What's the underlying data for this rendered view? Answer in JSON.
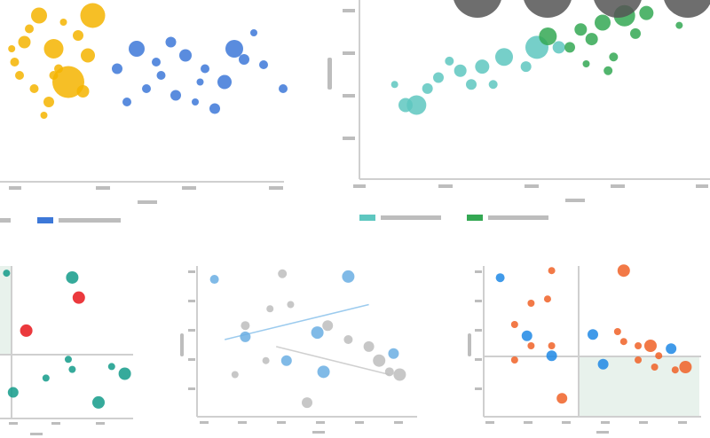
{
  "chart_data": [
    {
      "type": "scatter",
      "series": [
        {
          "name": "",
          "color": "#f4b400",
          "points": [
            [
              0.4,
              0.95
            ],
            [
              0.8,
              0.8
            ],
            [
              0.25,
              0.75
            ],
            [
              0.55,
              0.7
            ],
            [
              0.6,
              0.55
            ],
            [
              0.95,
              0.95
            ],
            [
              0.15,
              0.6
            ],
            [
              0.7,
              0.45
            ],
            [
              0.35,
              0.4
            ],
            [
              0.5,
              0.3
            ],
            [
              0.45,
              0.2
            ],
            [
              0.9,
              0.65
            ],
            [
              0.3,
              0.85
            ],
            [
              0.65,
              0.9
            ],
            [
              0.85,
              0.38
            ],
            [
              0.2,
              0.5
            ],
            [
              0.12,
              0.7
            ],
            [
              0.55,
              0.5
            ]
          ],
          "sizes": [
            9,
            6,
            7,
            11,
            5,
            14,
            5,
            18,
            5,
            6,
            4,
            8,
            5,
            4,
            7,
            5,
            4,
            5
          ]
        },
        {
          "name": "",
          "color": "#3d78d8",
          "points": [
            [
              1.2,
              0.55
            ],
            [
              1.4,
              0.7
            ],
            [
              1.6,
              0.6
            ],
            [
              1.75,
              0.75
            ],
            [
              1.9,
              0.65
            ],
            [
              2.1,
              0.55
            ],
            [
              2.3,
              0.45
            ],
            [
              2.5,
              0.62
            ],
            [
              2.7,
              0.58
            ],
            [
              2.9,
              0.4
            ],
            [
              1.5,
              0.4
            ],
            [
              1.8,
              0.35
            ],
            [
              2.0,
              0.3
            ],
            [
              2.2,
              0.25
            ],
            [
              2.6,
              0.82
            ],
            [
              1.3,
              0.3
            ],
            [
              2.4,
              0.7
            ],
            [
              1.65,
              0.5
            ],
            [
              2.05,
              0.45
            ]
          ],
          "sizes": [
            6,
            9,
            5,
            6,
            7,
            5,
            8,
            6,
            5,
            5,
            5,
            6,
            4,
            6,
            4,
            5,
            10,
            5,
            4
          ]
        }
      ],
      "xlim": [
        0,
        3
      ],
      "ylim": [
        0,
        1
      ]
    },
    {
      "type": "scatter",
      "series": [
        {
          "name": "",
          "color": "#5ec7c0",
          "points": [
            [
              0.3,
              0.3
            ],
            [
              0.4,
              0.3
            ],
            [
              0.5,
              0.42
            ],
            [
              0.8,
              0.55
            ],
            [
              1.0,
              0.58
            ],
            [
              1.2,
              0.65
            ],
            [
              1.5,
              0.72
            ],
            [
              1.7,
              0.72
            ],
            [
              0.6,
              0.5
            ],
            [
              0.9,
              0.45
            ],
            [
              1.1,
              0.45
            ],
            [
              1.4,
              0.58
            ],
            [
              0.2,
              0.45
            ],
            [
              0.7,
              0.62
            ]
          ],
          "sizes": [
            8,
            11,
            6,
            7,
            8,
            10,
            13,
            7,
            6,
            6,
            5,
            6,
            4,
            5
          ]
        },
        {
          "name": "",
          "color": "#34a853",
          "points": [
            [
              1.6,
              0.8
            ],
            [
              1.9,
              0.85
            ],
            [
              2.1,
              0.9
            ],
            [
              2.3,
              0.95
            ],
            [
              2.5,
              0.97
            ],
            [
              1.8,
              0.72
            ],
            [
              2.0,
              0.78
            ],
            [
              2.2,
              0.65
            ],
            [
              2.4,
              0.82
            ],
            [
              2.8,
              0.88
            ],
            [
              1.95,
              0.6
            ],
            [
              2.15,
              0.55
            ]
          ],
          "sizes": [
            10,
            7,
            9,
            12,
            8,
            6,
            7,
            5,
            6,
            4,
            4,
            5
          ]
        }
      ],
      "xlim": [
        0,
        3
      ],
      "ylim": [
        0,
        1
      ]
    },
    {
      "type": "scatter",
      "series": [
        {
          "name": "",
          "color": "#9ad0b8",
          "region": true
        },
        {
          "name": "",
          "color": "#139b8a",
          "points": [
            [
              0.55,
              0.92
            ],
            [
              0.1,
              0.12
            ],
            [
              0.35,
              0.22
            ],
            [
              0.55,
              0.28
            ],
            [
              0.52,
              0.35
            ],
            [
              0.85,
              0.3
            ],
            [
              0.75,
              0.05
            ],
            [
              0.95,
              0.25
            ],
            [
              0.05,
              0.95
            ]
          ],
          "sizes": [
            7,
            6,
            4,
            4,
            4,
            4,
            7,
            7,
            4
          ]
        },
        {
          "name": "",
          "color": "#e8161b",
          "points": [
            [
              0.6,
              0.78
            ],
            [
              0.2,
              0.55
            ]
          ],
          "sizes": [
            7,
            7
          ]
        }
      ],
      "xlim": [
        0,
        1
      ],
      "ylim": [
        0,
        1
      ]
    },
    {
      "type": "scatter",
      "series": [
        {
          "name": "",
          "color": "#6aaee3",
          "points": [
            [
              0.05,
              0.93
            ],
            [
              0.2,
              0.52
            ],
            [
              0.4,
              0.35
            ],
            [
              0.55,
              0.55
            ],
            [
              0.7,
              0.95
            ],
            [
              0.58,
              0.27
            ],
            [
              0.92,
              0.4
            ]
          ],
          "sizes": [
            5,
            6,
            6,
            7,
            7,
            7,
            6
          ]
        },
        {
          "name": "",
          "color": "#bdbdbd",
          "points": [
            [
              0.38,
              0.97
            ],
            [
              0.2,
              0.6
            ],
            [
              0.32,
              0.72
            ],
            [
              0.42,
              0.75
            ],
            [
              0.6,
              0.6
            ],
            [
              0.7,
              0.5
            ],
            [
              0.8,
              0.45
            ],
            [
              0.85,
              0.35
            ],
            [
              0.95,
              0.25
            ],
            [
              0.15,
              0.25
            ],
            [
              0.3,
              0.35
            ],
            [
              0.5,
              0.05
            ],
            [
              0.9,
              0.27
            ]
          ],
          "sizes": [
            5,
            5,
            4,
            4,
            6,
            5,
            6,
            7,
            7,
            4,
            4,
            6,
            5
          ]
        }
      ],
      "trendlines": [
        {
          "color": "#9ccbee",
          "from": [
            0.1,
            0.5
          ],
          "to": [
            0.8,
            0.75
          ]
        },
        {
          "color": "#d0d0d0",
          "from": [
            0.35,
            0.45
          ],
          "to": [
            0.9,
            0.25
          ]
        }
      ],
      "xlim": [
        0,
        1
      ],
      "ylim": [
        0,
        1
      ]
    },
    {
      "type": "scatter",
      "series": [
        {
          "name": "",
          "color": "#e8f2ec",
          "region": true
        },
        {
          "name": "",
          "color": "#f06127",
          "points": [
            [
              0.3,
              0.98
            ],
            [
              0.65,
              0.98
            ],
            [
              0.2,
              0.75
            ],
            [
              0.28,
              0.78
            ],
            [
              0.12,
              0.6
            ],
            [
              0.2,
              0.45
            ],
            [
              0.3,
              0.45
            ],
            [
              0.12,
              0.35
            ],
            [
              0.62,
              0.55
            ],
            [
              0.72,
              0.45
            ],
            [
              0.65,
              0.48
            ],
            [
              0.78,
              0.45
            ],
            [
              0.82,
              0.38
            ],
            [
              0.72,
              0.35
            ],
            [
              0.8,
              0.3
            ],
            [
              0.95,
              0.3
            ],
            [
              0.9,
              0.28
            ],
            [
              0.35,
              0.08
            ]
          ],
          "sizes": [
            4,
            7,
            4,
            4,
            4,
            4,
            4,
            4,
            4,
            4,
            4,
            7,
            4,
            4,
            4,
            7,
            4,
            6
          ]
        },
        {
          "name": "",
          "color": "#1e88e5",
          "points": [
            [
              0.05,
              0.93
            ],
            [
              0.18,
              0.52
            ],
            [
              0.3,
              0.38
            ],
            [
              0.5,
              0.53
            ],
            [
              0.55,
              0.32
            ],
            [
              0.88,
              0.43
            ]
          ],
          "sizes": [
            5,
            6,
            6,
            6,
            6,
            6
          ]
        }
      ],
      "xlim": [
        0,
        1
      ],
      "ylim": [
        0,
        1
      ]
    }
  ],
  "overlay_buttons": [
    "round-button",
    "round-button",
    "round-button",
    "round-button"
  ]
}
